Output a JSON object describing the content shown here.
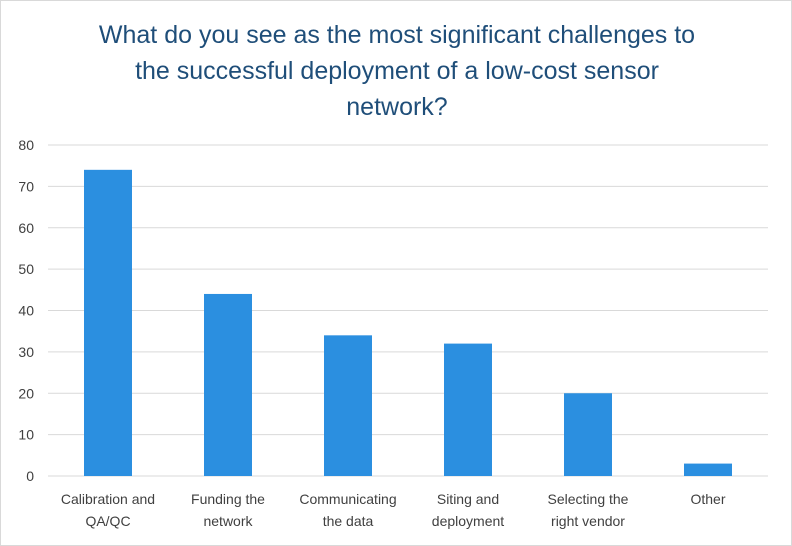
{
  "chart_data": {
    "type": "bar",
    "title": "What do you see as the most significant challenges to the successful deployment of a low-cost sensor network?",
    "title_lines": [
      "What do you see as the most significant challenges to",
      "the successful deployment of a low-cost sensor",
      "network?"
    ],
    "categories": [
      [
        "Calibration and",
        "QA/QC"
      ],
      [
        "Funding the",
        "network"
      ],
      [
        "Communicating",
        "the data"
      ],
      [
        "Siting and",
        "deployment"
      ],
      [
        "Selecting the",
        "right vendor"
      ],
      [
        "Other"
      ]
    ],
    "values": [
      74,
      44,
      34,
      32,
      20,
      3
    ],
    "ylim": [
      0,
      80
    ],
    "yticks": [
      0,
      10,
      20,
      30,
      40,
      50,
      60,
      70,
      80
    ],
    "grid": true,
    "legend": "none",
    "bar_color": "#2b8fe0",
    "grid_color": "#d9d9d9",
    "title_color": "#1f4e79",
    "label_color": "#404040"
  }
}
